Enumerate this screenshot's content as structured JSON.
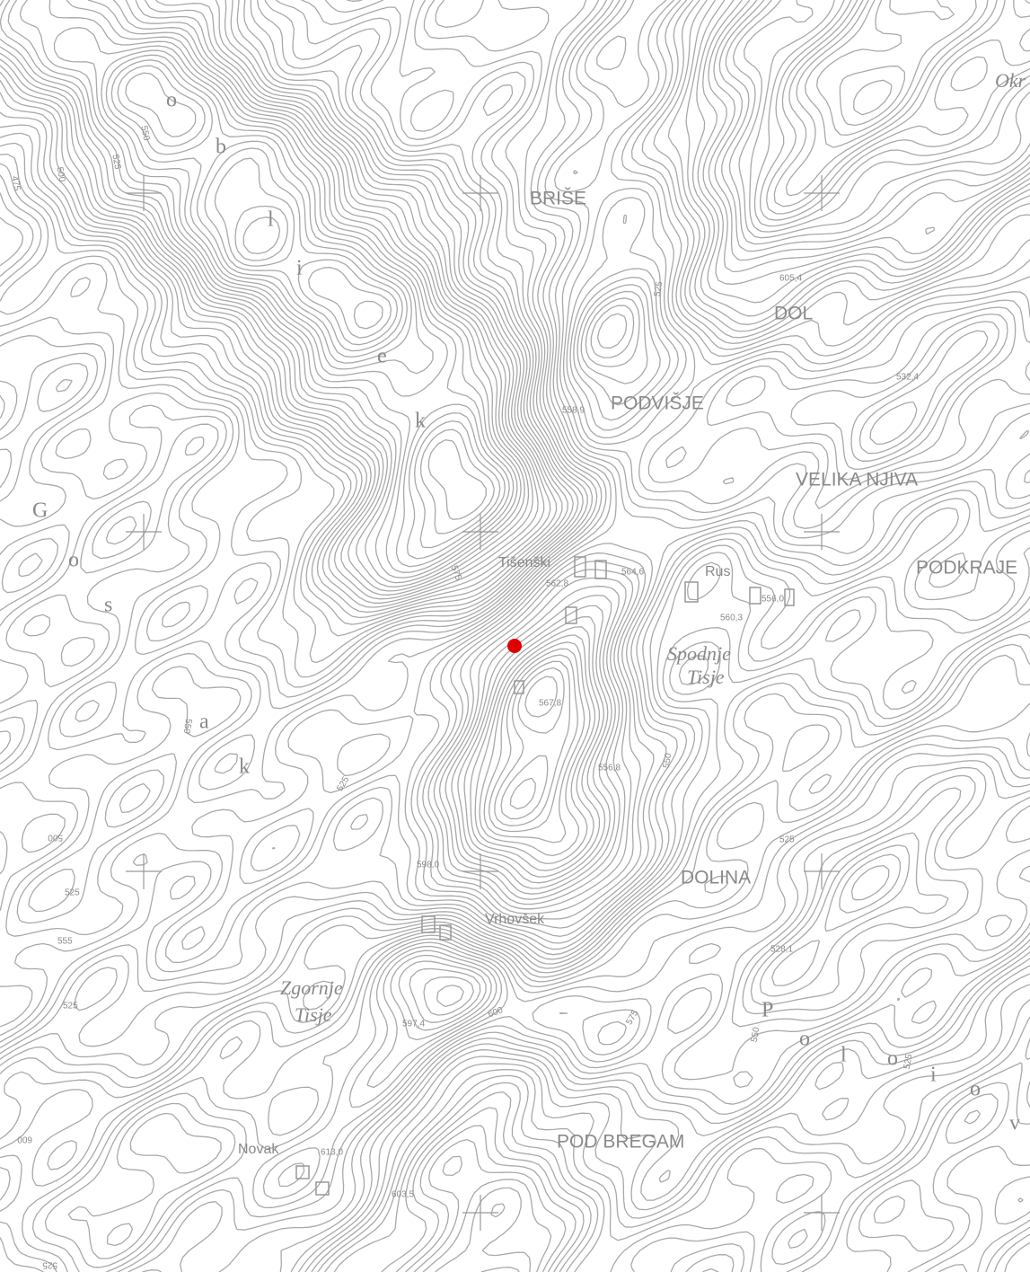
{
  "places": [
    "BRIŠE",
    "DOL",
    "PODVIŠJE",
    "VELIKA NJIVA",
    "PODKRAJE",
    "Rus",
    "Tišenški",
    "Spodnje",
    "Tisje",
    "DOLINA",
    "Vrhovšek",
    "Zgornje",
    "Tisje",
    "Novak",
    "POD BREGAM",
    "Okr"
  ],
  "ridge_letters": [
    "o",
    "b",
    "l",
    "i",
    "e",
    "k"
  ],
  "slope_letters": [
    "G",
    "o",
    "s",
    "a",
    "k"
  ],
  "lower_letters": [
    "P",
    "o",
    "l",
    "o",
    "i",
    "o",
    "v"
  ],
  "spot_heights": [
    "605,4",
    "532,4",
    "558,9",
    "562,8",
    "564,6",
    "556,0",
    "560,3",
    "567,8",
    "556,8",
    "598,0",
    "597,4",
    "528,1",
    "613,0",
    "603,5"
  ],
  "contour_labels": [
    "550",
    "525",
    "500",
    "475",
    "525",
    "550",
    "575",
    "525",
    "550",
    "600",
    "575",
    "550",
    "525",
    "525",
    "500",
    "525",
    "555",
    "525",
    "600",
    "525"
  ]
}
